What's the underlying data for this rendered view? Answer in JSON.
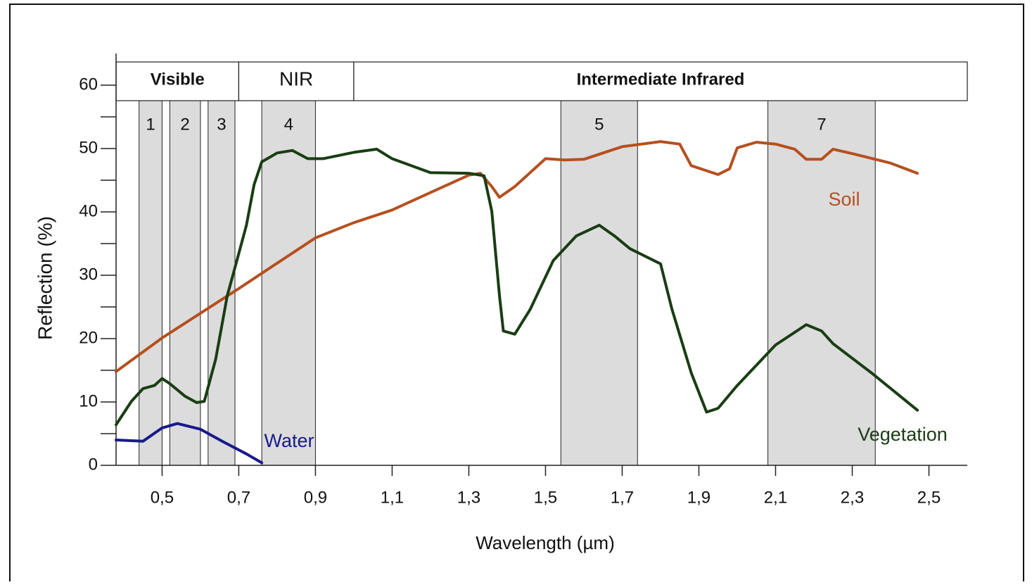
{
  "chart_data": {
    "type": "line",
    "xlabel": "Wavelength (µm)",
    "ylabel": "Reflection (%)",
    "xlim": [
      0.38,
      2.6
    ],
    "ylim": [
      0,
      65
    ],
    "xticks": [
      {
        "value": 0.5,
        "label": "0,5"
      },
      {
        "value": 0.7,
        "label": "0,7"
      },
      {
        "value": 0.9,
        "label": "0,9"
      },
      {
        "value": 1.1,
        "label": "1,1"
      },
      {
        "value": 1.3,
        "label": "1,3"
      },
      {
        "value": 1.5,
        "label": "1,5"
      },
      {
        "value": 1.7,
        "label": "1,7"
      },
      {
        "value": 1.9,
        "label": "1,9"
      },
      {
        "value": 2.1,
        "label": "2,1"
      },
      {
        "value": 2.3,
        "label": "2,3"
      },
      {
        "value": 2.5,
        "label": "2,5"
      }
    ],
    "yticks": [
      0,
      10,
      20,
      30,
      40,
      50,
      60
    ],
    "yticks_minor": [
      5,
      15,
      25,
      35,
      45,
      55
    ],
    "regions": [
      {
        "name": "Visible",
        "range": [
          0.38,
          0.7
        ]
      },
      {
        "name": "NIR",
        "range": [
          0.7,
          1.0
        ]
      },
      {
        "name": "Intermediate Infrared",
        "range": [
          1.0,
          2.6
        ]
      }
    ],
    "bands": [
      {
        "name": "1",
        "range": [
          0.44,
          0.5
        ]
      },
      {
        "name": "2",
        "range": [
          0.52,
          0.6
        ]
      },
      {
        "name": "3",
        "range": [
          0.62,
          0.69
        ]
      },
      {
        "name": "4",
        "range": [
          0.76,
          0.9
        ]
      },
      {
        "name": "5",
        "range": [
          1.54,
          1.74
        ]
      },
      {
        "name": "7",
        "range": [
          2.08,
          2.36
        ]
      }
    ],
    "series": [
      {
        "name": "Soil",
        "color": "#b5501f",
        "x": [
          0.38,
          0.5,
          0.7,
          0.9,
          1.0,
          1.1,
          1.3,
          1.33,
          1.36,
          1.38,
          1.42,
          1.5,
          1.55,
          1.6,
          1.7,
          1.8,
          1.85,
          1.88,
          1.95,
          1.98,
          2.0,
          2.05,
          2.1,
          2.15,
          2.18,
          2.22,
          2.25,
          2.3,
          2.4,
          2.47
        ],
        "values": [
          14.8,
          20.1,
          27.9,
          35.9,
          38.3,
          40.3,
          45.8,
          46.1,
          44,
          42.3,
          44,
          48.4,
          48.2,
          48.3,
          50.3,
          51.1,
          50.7,
          47.3,
          45.9,
          46.8,
          50.1,
          51,
          50.7,
          49.9,
          48.3,
          48.3,
          49.9,
          49.2,
          47.7,
          46.1
        ]
      },
      {
        "name": "Vegetation",
        "color": "#1a3d14",
        "x": [
          0.38,
          0.42,
          0.45,
          0.48,
          0.5,
          0.52,
          0.56,
          0.59,
          0.61,
          0.64,
          0.67,
          0.69,
          0.72,
          0.74,
          0.76,
          0.8,
          0.84,
          0.88,
          0.92,
          1.0,
          1.06,
          1.1,
          1.2,
          1.3,
          1.34,
          1.36,
          1.38,
          1.39,
          1.42,
          1.46,
          1.52,
          1.58,
          1.64,
          1.68,
          1.72,
          1.8,
          1.83,
          1.88,
          1.92,
          1.95,
          2.0,
          2.1,
          2.18,
          2.22,
          2.25,
          2.35,
          2.47
        ],
        "values": [
          6.4,
          10.1,
          12.1,
          12.6,
          13.7,
          12.9,
          10.9,
          9.9,
          10.1,
          16.8,
          26.8,
          31.2,
          37.9,
          44.3,
          47.9,
          49.3,
          49.7,
          48.4,
          48.4,
          49.4,
          49.9,
          48.4,
          46.2,
          46.1,
          45.7,
          40.1,
          26.8,
          21.2,
          20.7,
          24.6,
          32.3,
          36.2,
          37.9,
          36.2,
          34.2,
          31.8,
          24.6,
          14.6,
          8.4,
          9,
          12.6,
          19,
          22.2,
          21.2,
          19.2,
          14.6,
          8.7
        ]
      },
      {
        "name": "Water",
        "color": "#1a1a8c",
        "x": [
          0.38,
          0.45,
          0.5,
          0.54,
          0.6,
          0.66,
          0.72,
          0.76
        ],
        "values": [
          4,
          3.8,
          5.9,
          6.6,
          5.7,
          3.7,
          1.8,
          0.4
        ]
      }
    ]
  }
}
